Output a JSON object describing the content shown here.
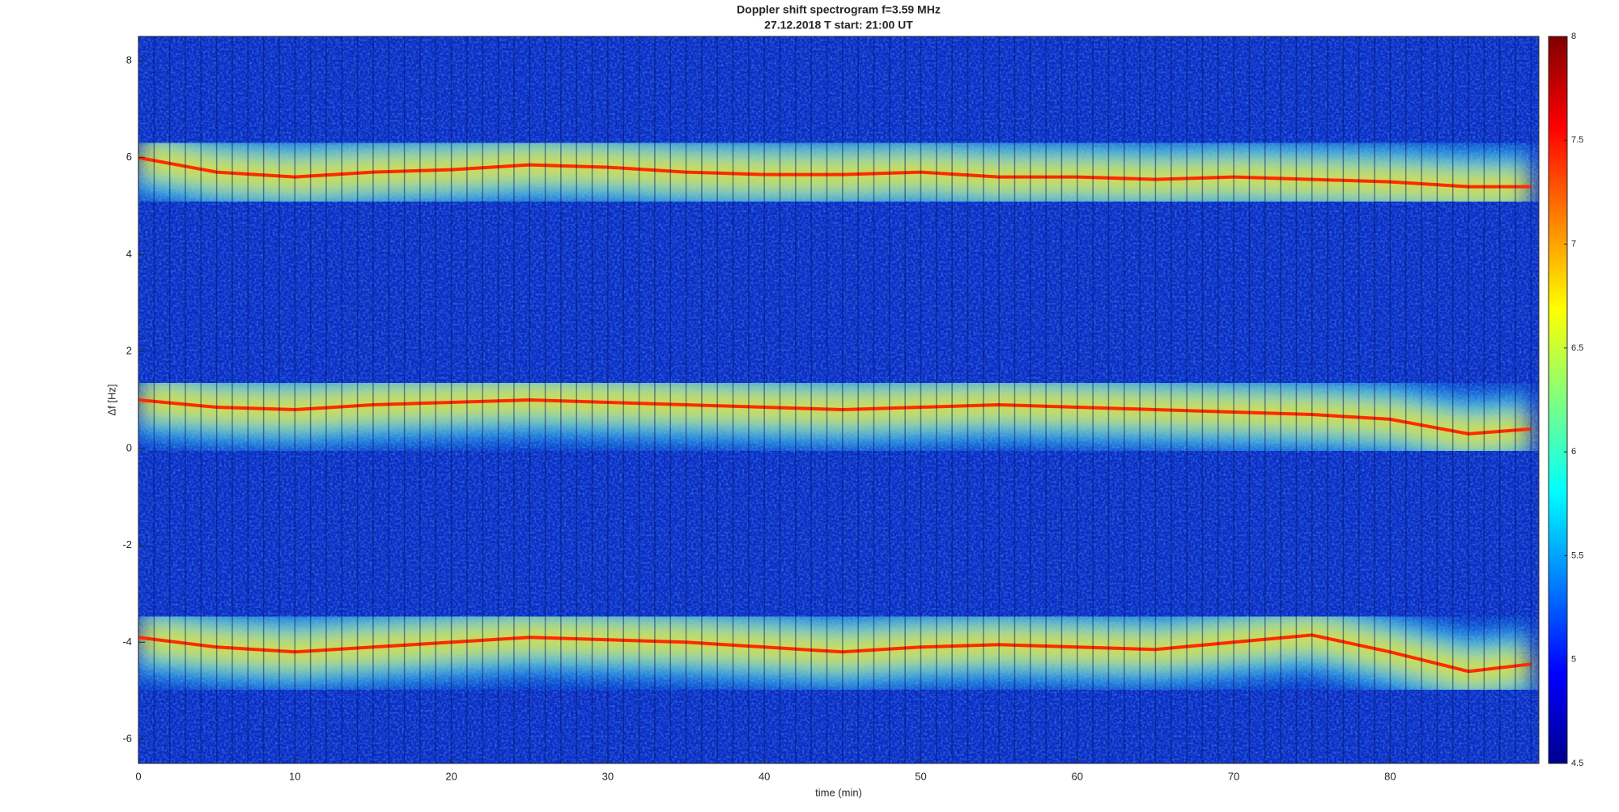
{
  "chart_data": {
    "type": "spectrogram",
    "title": "Doppler shift spectrogram f=3.59 MHz",
    "subtitle": "27.12.2018   T start: 21:00 UT",
    "xlabel": "time (min)",
    "ylabel": "Δf [Hz]",
    "xlim": [
      0,
      89.5
    ],
    "xticks": [
      0,
      10,
      20,
      30,
      40,
      50,
      60,
      70,
      80
    ],
    "ylim": [
      -6.5,
      8.5
    ],
    "yticks": [
      -6,
      -4,
      -2,
      0,
      2,
      4,
      6,
      8
    ],
    "background_color": "#0b2bc4",
    "colormap": "jet",
    "clim": [
      4.5,
      8
    ],
    "cticks": [
      4.5,
      5,
      5.5,
      6,
      6.5,
      7,
      7.5,
      8
    ],
    "x": [
      0,
      5,
      10,
      15,
      20,
      25,
      30,
      35,
      40,
      45,
      50,
      55,
      60,
      65,
      70,
      75,
      80,
      85,
      89
    ],
    "series": [
      {
        "color": "#ff2a00",
        "values": [
          6.0,
          5.7,
          5.6,
          5.7,
          5.75,
          5.85,
          5.8,
          5.7,
          5.65,
          5.65,
          5.7,
          5.6,
          5.6,
          5.55,
          5.6,
          5.55,
          5.5,
          5.4,
          5.4
        ]
      },
      {
        "color": "#ff2a00",
        "values": [
          1.0,
          0.85,
          0.8,
          0.9,
          0.95,
          1.0,
          0.95,
          0.9,
          0.85,
          0.8,
          0.85,
          0.9,
          0.85,
          0.8,
          0.75,
          0.7,
          0.6,
          0.3,
          0.4
        ]
      },
      {
        "color": "#ff2a00",
        "values": [
          -3.9,
          -4.1,
          -4.2,
          -4.1,
          -4.0,
          -3.9,
          -3.95,
          -4.0,
          -4.1,
          -4.2,
          -4.1,
          -4.05,
          -4.1,
          -4.15,
          -4.0,
          -3.85,
          -4.2,
          -4.6,
          -4.45
        ]
      }
    ]
  }
}
